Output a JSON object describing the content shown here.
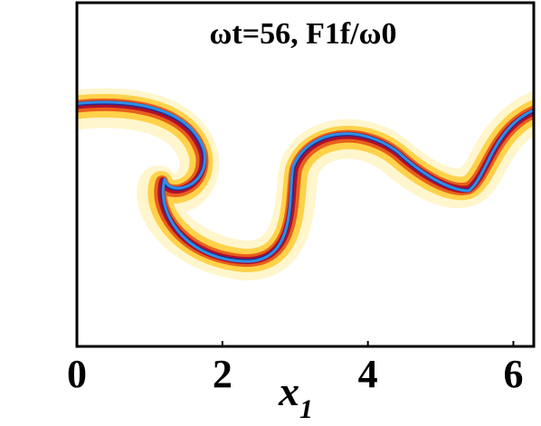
{
  "chart_data": {
    "type": "field",
    "title": "ωt=56, F1f/ω0",
    "xlabel": "x",
    "xlabel_subscript": "1",
    "xlim": [
      0,
      6.28
    ],
    "xticks": [
      0,
      2,
      4,
      6
    ]
  }
}
